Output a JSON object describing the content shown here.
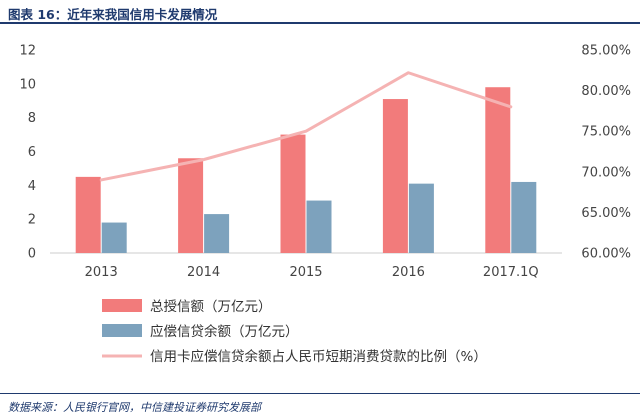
{
  "header": {
    "title": "图表 16：近年来我国信用卡发展情况"
  },
  "footer": {
    "source": "数据来源：人民银行官网，中信建投证券研究发展部"
  },
  "colors": {
    "bar1": "#f27b7b",
    "bar2": "#7da2bd",
    "line": "#f5b3b3",
    "title": "#1f3a6e"
  },
  "chart_data": {
    "type": "bar",
    "categories": [
      "2013",
      "2014",
      "2015",
      "2016",
      "2017.1Q"
    ],
    "series": [
      {
        "name": "总授信额（万亿元）",
        "type": "bar",
        "axis": "left",
        "values": [
          4.5,
          5.6,
          7.0,
          9.1,
          9.8
        ]
      },
      {
        "name": "应偿信贷余额（万亿元）",
        "type": "bar",
        "axis": "left",
        "values": [
          1.8,
          2.3,
          3.1,
          4.1,
          4.2
        ]
      },
      {
        "name": "信用卡应偿信贷余额占人民币短期消费贷款的比例（%）",
        "type": "line",
        "axis": "right",
        "values": [
          69.0,
          71.5,
          75.0,
          82.2,
          78.0
        ]
      }
    ],
    "ylim_left": [
      0,
      12
    ],
    "yticks_left": [
      "0",
      "2",
      "4",
      "6",
      "8",
      "10",
      "12"
    ],
    "ylim_right": [
      60,
      85
    ],
    "yticks_right": [
      "60.00%",
      "65.00%",
      "70.00%",
      "75.00%",
      "80.00%",
      "85.00%"
    ],
    "legend_position": "bottom",
    "grid": false
  }
}
